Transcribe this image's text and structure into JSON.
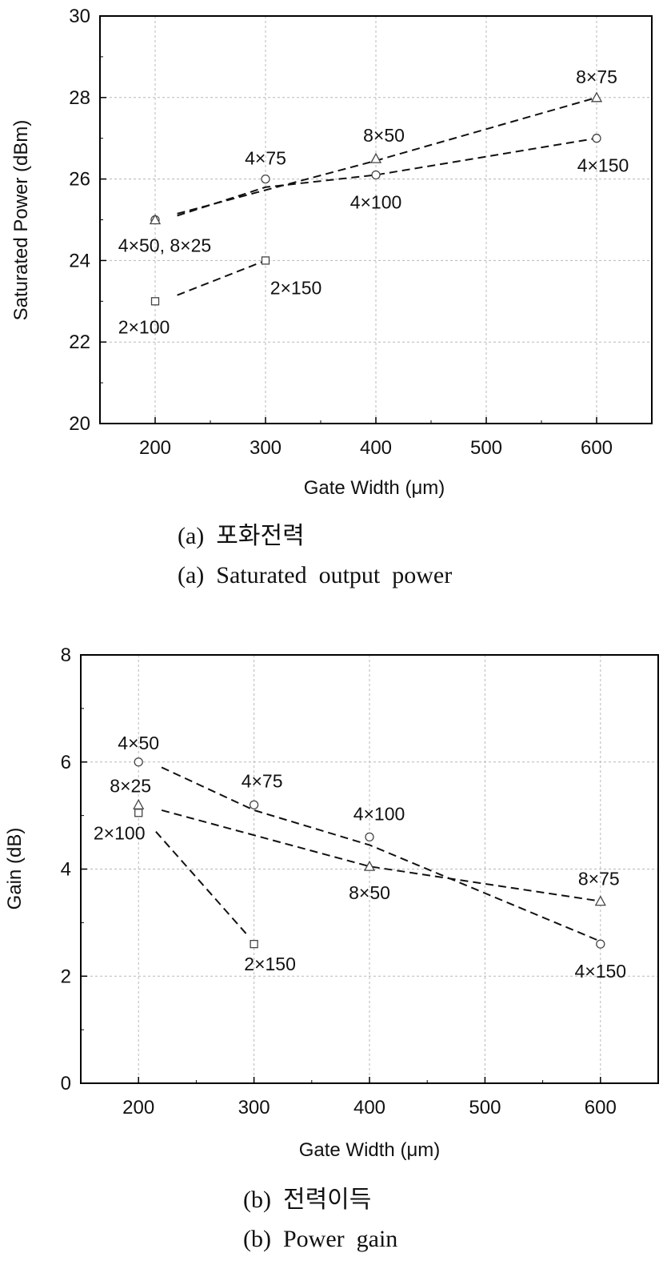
{
  "chart_data": [
    {
      "type": "scatter",
      "caption_ko": "(a)  포화전력",
      "caption_en": "(a)  Saturated  output  power",
      "xlabel": "Gate Width (μm)",
      "ylabel": "Saturated Power (dBm)",
      "xlim": [
        150,
        650
      ],
      "ylim": [
        20,
        30
      ],
      "xticks": [
        200,
        300,
        400,
        500,
        600
      ],
      "yticks": [
        20,
        22,
        24,
        26,
        28,
        30
      ],
      "grid": true,
      "points": [
        {
          "x": 200,
          "y": 23.0,
          "marker": "square",
          "label": "2×100"
        },
        {
          "x": 300,
          "y": 24.0,
          "marker": "square",
          "label": "2×150"
        },
        {
          "x": 200,
          "y": 25.0,
          "marker": "circle",
          "label": "4×50, 8×25"
        },
        {
          "x": 200,
          "y": 25.0,
          "marker": "triangle",
          "label": ""
        },
        {
          "x": 300,
          "y": 26.0,
          "marker": "circle",
          "label": "4×75"
        },
        {
          "x": 400,
          "y": 26.1,
          "marker": "circle",
          "label": "4×100"
        },
        {
          "x": 600,
          "y": 27.0,
          "marker": "circle",
          "label": "4×150"
        },
        {
          "x": 400,
          "y": 26.5,
          "marker": "triangle",
          "label": "8×50"
        },
        {
          "x": 600,
          "y": 28.0,
          "marker": "triangle",
          "label": "8×75"
        }
      ],
      "trend_lines": [
        {
          "x": [
            220,
            300
          ],
          "y": [
            23.15,
            24.0
          ]
        },
        {
          "x": [
            220,
            300,
            400,
            600
          ],
          "y": [
            25.1,
            25.8,
            26.1,
            27.0
          ]
        },
        {
          "x": [
            220,
            400,
            600
          ],
          "y": [
            25.15,
            26.45,
            28.0
          ]
        }
      ]
    },
    {
      "type": "scatter",
      "caption_ko": "(b)  전력이득",
      "caption_en": "(b)  Power  gain",
      "xlabel": "Gate Width (μm)",
      "ylabel": "Gain (dB)",
      "xlim": [
        150,
        650
      ],
      "ylim": [
        0,
        8
      ],
      "xticks": [
        200,
        300,
        400,
        500,
        600
      ],
      "yticks": [
        0,
        2,
        4,
        6,
        8
      ],
      "grid": true,
      "points": [
        {
          "x": 200,
          "y": 6.0,
          "marker": "circle",
          "label": "4×50"
        },
        {
          "x": 300,
          "y": 5.2,
          "marker": "circle",
          "label": "4×75"
        },
        {
          "x": 400,
          "y": 4.6,
          "marker": "circle",
          "label": "4×100"
        },
        {
          "x": 600,
          "y": 2.6,
          "marker": "circle",
          "label": "4×150"
        },
        {
          "x": 200,
          "y": 5.2,
          "marker": "triangle",
          "label": "8×25"
        },
        {
          "x": 400,
          "y": 4.05,
          "marker": "triangle",
          "label": "8×50"
        },
        {
          "x": 600,
          "y": 3.4,
          "marker": "triangle",
          "label": "8×75"
        },
        {
          "x": 200,
          "y": 5.05,
          "marker": "square",
          "label": "2×100"
        },
        {
          "x": 300,
          "y": 2.6,
          "marker": "square",
          "label": "2×150"
        }
      ],
      "trend_lines": [
        {
          "x": [
            220,
            300,
            400,
            600
          ],
          "y": [
            5.9,
            5.1,
            4.45,
            2.65
          ]
        },
        {
          "x": [
            220,
            400,
            600
          ],
          "y": [
            5.1,
            4.05,
            3.4
          ]
        },
        {
          "x": [
            215,
            295
          ],
          "y": [
            4.7,
            2.75
          ]
        }
      ]
    }
  ]
}
